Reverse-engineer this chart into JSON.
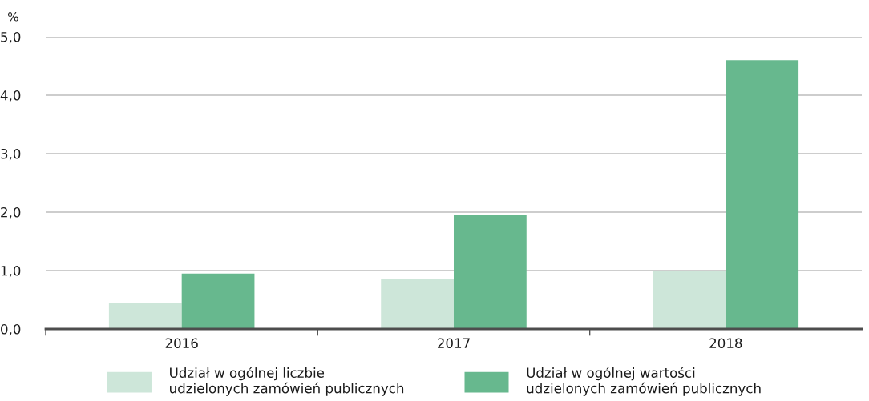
{
  "chart_data": {
    "type": "bar",
    "ylabel": "%",
    "categories": [
      "2016",
      "2017",
      "2018"
    ],
    "series": [
      {
        "name": "Udział w ogólnej liczbie\nudzielonych zamówień publicznych",
        "color": "#cde6d9",
        "values": [
          0.45,
          0.85,
          1.0
        ]
      },
      {
        "name": "Udział w ogólnej wartości\nudzielonych zamówień publicznych",
        "color": "#67b88e",
        "values": [
          0.95,
          1.95,
          4.6
        ]
      }
    ],
    "ylim": [
      0,
      5
    ],
    "yticks": [
      {
        "value": 0,
        "label": "0,0"
      },
      {
        "value": 1,
        "label": "1,0"
      },
      {
        "value": 2,
        "label": "2,0"
      },
      {
        "value": 3,
        "label": "3,0"
      },
      {
        "value": 4,
        "label": "4,0"
      },
      {
        "value": 5,
        "label": "5,0"
      }
    ],
    "grid": "y",
    "legend": "bottom"
  }
}
